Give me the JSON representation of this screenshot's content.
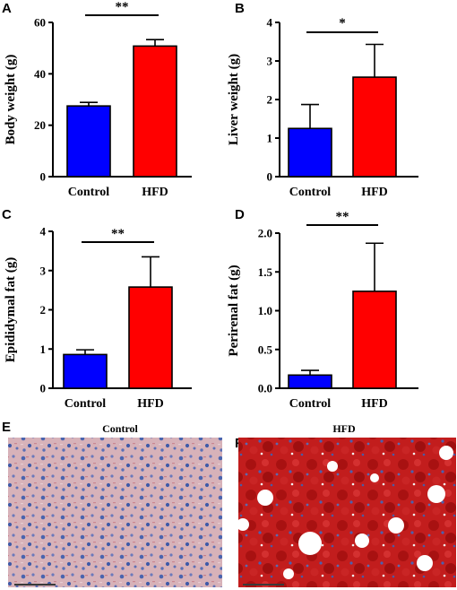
{
  "colors": {
    "control": "#0000ff",
    "hfd": "#ff0000"
  },
  "chart_data": [
    {
      "panel": "A",
      "type": "bar",
      "categories": [
        "Control",
        "HFD"
      ],
      "values": [
        27.5,
        50.8
      ],
      "errors": [
        1.4,
        2.5
      ],
      "ylabel": "Body weight (g)",
      "ylim": [
        0,
        60
      ],
      "yticks": [
        0,
        20,
        40,
        60
      ],
      "significance": "**"
    },
    {
      "panel": "B",
      "type": "bar",
      "categories": [
        "Control",
        "HFD"
      ],
      "values": [
        1.25,
        2.58
      ],
      "errors": [
        0.62,
        0.85
      ],
      "ylabel": "Liver weight (g)",
      "ylim": [
        0,
        4
      ],
      "yticks": [
        0,
        1,
        2,
        3,
        4
      ],
      "significance": "*"
    },
    {
      "panel": "C",
      "type": "bar",
      "categories": [
        "Control",
        "HFD"
      ],
      "values": [
        0.86,
        2.58
      ],
      "errors": [
        0.12,
        0.77
      ],
      "ylabel": "Epididymal fat (g)",
      "ylim": [
        0,
        4
      ],
      "yticks": [
        0,
        1,
        2,
        3,
        4
      ],
      "significance": "**"
    },
    {
      "panel": "D",
      "type": "bar",
      "categories": [
        "Control",
        "HFD"
      ],
      "values": [
        0.17,
        1.25
      ],
      "errors": [
        0.06,
        0.62
      ],
      "ylabel": "Perirenal fat (g)",
      "ylim": [
        0,
        2.0
      ],
      "yticks": [
        "0.0",
        "0.5",
        "1.0",
        "1.5",
        "2.0"
      ],
      "significance": "**"
    }
  ],
  "images": [
    {
      "panel": "E",
      "title": "Control"
    },
    {
      "panel": "F",
      "title": "HFD"
    }
  ]
}
